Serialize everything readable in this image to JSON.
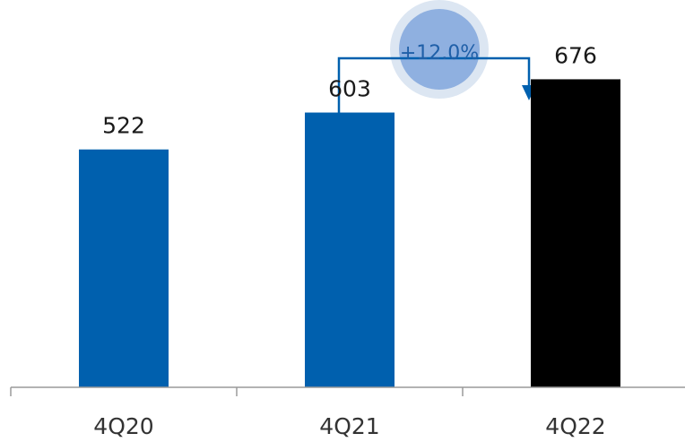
{
  "chart_data": {
    "type": "bar",
    "title": "",
    "xlabel": "",
    "ylabel": "",
    "categories": [
      "4Q20",
      "4Q21",
      "4Q22"
    ],
    "values": [
      522,
      603,
      676
    ],
    "value_labels": [
      "522",
      "603",
      "676"
    ],
    "bar_colors": [
      "#0060ae",
      "#0060ae",
      "#000000"
    ],
    "ylim": [
      0,
      850
    ],
    "grid": false,
    "legend": "none",
    "annotation": {
      "type": "growth-arrow",
      "from_category": "4Q21",
      "to_category": "4Q22",
      "text": "+12.0%",
      "line_color": "#0060ae",
      "bubble_outer_color": "#dce6f2",
      "bubble_inner_color": "#8fb0e0"
    }
  }
}
